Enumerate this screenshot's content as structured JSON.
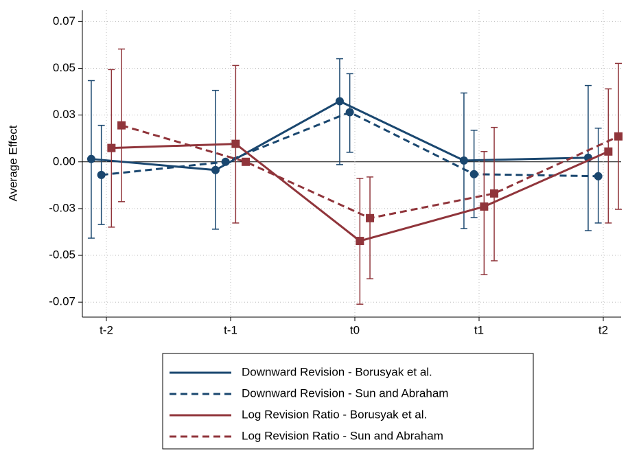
{
  "chart_data": {
    "type": "errorbar-line",
    "y_label": "Average Effect",
    "categories": [
      "t-2",
      "t-1",
      "t0",
      "t1",
      "t2"
    ],
    "ylim": [
      -0.083,
      0.081
    ],
    "yticks": [
      {
        "value": 0.075,
        "label": "0.07"
      },
      0.05,
      {
        "value": 0.025,
        "label": "0.03"
      },
      {
        "value": 0,
        "label": "0.00"
      },
      {
        "value": -0.025,
        "label": "-0.03"
      },
      -0.05,
      {
        "value": -0.075,
        "label": "-0.07"
      }
    ],
    "grid": true,
    "series": [
      {
        "name": "Downward Revision - Borusyak et al.",
        "color": "#1a476f",
        "dash": false,
        "marker": "circle",
        "values": [
          0.0015,
          -0.0044,
          0.0324,
          0.0007,
          0.0022
        ],
        "lower": [
          -0.0408,
          -0.036,
          -0.0015,
          -0.0357,
          -0.0368
        ],
        "upper": [
          0.0434,
          0.0382,
          0.0551,
          0.0368,
          0.0408
        ]
      },
      {
        "name": "Downward Revision - Sun and Abraham",
        "color": "#1a476f",
        "dash": true,
        "marker": "circle",
        "values": [
          -0.007,
          0,
          0.0265,
          -0.0066,
          -0.0077
        ],
        "lower": [
          -0.0335,
          null,
          0.0051,
          -0.0298,
          -0.0327
        ],
        "upper": [
          0.0195,
          null,
          0.0471,
          0.0169,
          0.018
        ]
      },
      {
        "name": "Log Revision Ratio - Borusyak et al.",
        "color": "#90353b",
        "dash": false,
        "marker": "square",
        "values": [
          0.0074,
          0.0096,
          -0.0423,
          -0.0239,
          0.0055
        ],
        "lower": [
          -0.0349,
          -0.0327,
          -0.0761,
          -0.0603,
          -0.0327
        ],
        "upper": [
          0.0493,
          0.0515,
          -0.0088,
          0.0055,
          0.039
        ]
      },
      {
        "name": "Log Revision Ratio - Sun and Abraham",
        "color": "#90353b",
        "dash": true,
        "marker": "square",
        "values": [
          0.0195,
          0,
          -0.0301,
          -0.0169,
          0.0136
        ],
        "lower": [
          -0.0213,
          null,
          -0.0625,
          -0.0529,
          -0.0254
        ],
        "upper": [
          0.0603,
          null,
          -0.0081,
          0.0184,
          0.0526
        ]
      }
    ]
  }
}
